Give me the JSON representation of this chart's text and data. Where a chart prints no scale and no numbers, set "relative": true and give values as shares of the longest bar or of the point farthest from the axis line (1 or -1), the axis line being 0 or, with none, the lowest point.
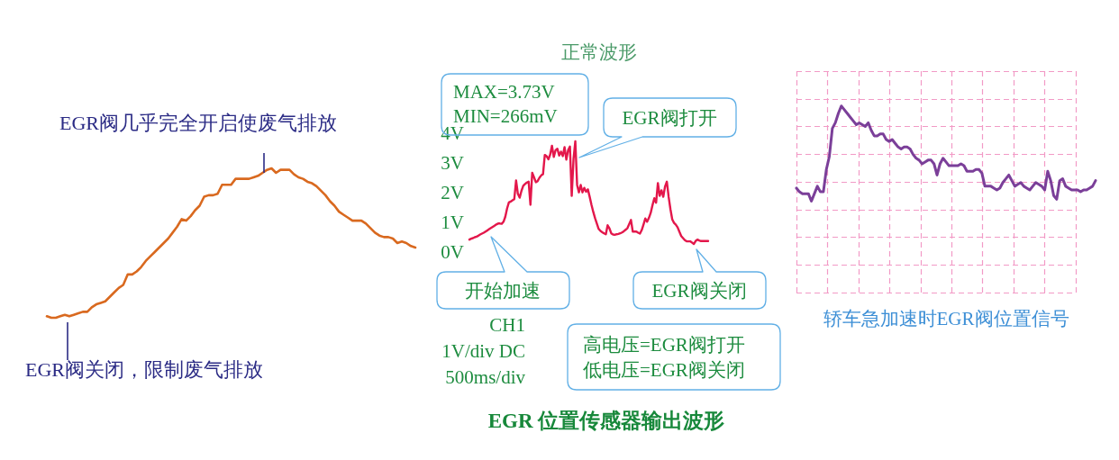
{
  "chart_data": [
    {
      "type": "line",
      "relative": true,
      "categories": [
        null,
        null,
        null,
        null,
        null,
        null,
        null,
        null,
        null,
        null,
        null,
        null,
        null,
        null,
        null,
        null,
        null,
        null,
        null,
        null,
        null,
        null,
        null,
        null,
        null,
        null,
        null,
        null,
        null,
        null,
        null,
        null,
        null,
        null,
        null,
        null,
        null,
        null,
        null,
        null,
        null,
        null,
        null,
        null,
        null,
        null,
        null,
        null,
        null,
        null,
        null,
        null,
        null,
        null,
        null,
        null,
        null,
        null,
        null,
        null,
        null,
        null,
        null,
        null,
        null,
        null,
        null,
        null,
        null,
        null,
        null,
        null,
        null,
        null,
        null,
        null,
        null,
        null,
        null,
        null,
        null,
        null,
        null
      ],
      "series": [
        {
          "color": "#d9691f",
          "values": [
            0.01,
            0,
            0,
            0.01,
            0.02,
            0.01,
            0.02,
            0.03,
            0.04,
            0.04,
            0.07,
            0.09,
            0.1,
            0.11,
            0.14,
            0.17,
            0.2,
            0.22,
            0.29,
            0.29,
            0.31,
            0.34,
            0.38,
            0.41,
            0.44,
            0.47,
            0.5,
            0.53,
            0.57,
            0.61,
            0.66,
            0.65,
            0.68,
            0.72,
            0.75,
            0.81,
            0.82,
            0.82,
            0.83,
            0.89,
            0.89,
            0.89,
            0.93,
            0.93,
            0.93,
            0.93,
            0.94,
            0.95,
            0.97,
            0.99,
            1.0,
            0.97,
            0.99,
            0.99,
            0.99,
            0.96,
            0.94,
            0.93,
            0.91,
            0.9,
            0.88,
            0.85,
            0.82,
            0.78,
            0.75,
            0.71,
            0.69,
            0.67,
            0.65,
            0.65,
            0.65,
            0.63,
            0.6,
            0.57,
            0.55,
            0.54,
            0.54,
            0.53,
            0.5,
            0.51,
            0.5,
            0.48,
            0.47
          ]
        }
      ],
      "annotations": [
        "EGR阀几乎完全开启使废气排放",
        "EGR阀关闭，限制废气排放"
      ]
    },
    {
      "type": "line",
      "title": "正常波形",
      "categories": [
        null,
        null,
        null,
        null,
        null,
        null,
        null,
        null,
        null,
        null,
        null,
        null,
        null,
        null,
        null,
        null,
        null,
        null,
        null,
        null,
        null,
        null,
        null,
        null,
        null,
        null,
        null,
        null,
        null,
        null,
        null,
        null,
        null,
        null,
        null,
        null,
        null,
        null,
        null,
        null,
        null,
        null,
        null,
        null,
        null,
        null,
        null,
        null,
        null,
        null,
        null,
        null,
        null,
        null,
        null,
        null,
        null,
        null,
        null,
        null,
        null,
        null,
        null,
        null,
        null,
        null,
        null,
        null,
        null,
        null,
        null,
        null,
        null,
        null,
        null,
        null,
        null,
        null,
        null,
        null,
        null,
        null,
        null,
        null,
        null,
        null,
        null,
        null,
        null,
        null,
        null,
        null,
        null,
        null,
        null,
        null,
        null,
        null,
        null,
        null,
        null,
        null,
        null,
        null,
        null,
        null,
        null,
        null,
        null,
        null,
        null,
        null,
        null,
        null,
        null,
        null,
        null,
        null,
        null,
        null,
        null,
        null,
        null,
        null,
        null,
        null,
        null,
        null,
        null,
        null,
        null,
        null,
        null,
        null
      ],
      "series": [
        {
          "color": "#e3174b",
          "values": [
            0.42,
            0.45,
            0.47,
            0.5,
            0.52,
            0.55,
            0.59,
            0.62,
            0.65,
            0.69,
            0.73,
            0.77,
            0.81,
            0.85,
            0.89,
            0.93,
            0.96,
            0.96,
            0.95,
            1.02,
            1.19,
            1.47,
            1.67,
            1.7,
            1.74,
            1.78,
            2.41,
            1.96,
            1.83,
            2.06,
            2.23,
            2.29,
            2.34,
            2.37,
            1.59,
            2.67,
            2.52,
            2.35,
            2.39,
            2.5,
            2.58,
            2.62,
            3.27,
            3.23,
            3.12,
            3.28,
            3.58,
            3.2,
            3.43,
            3.48,
            3.25,
            3.38,
            3.23,
            3.53,
            3.11,
            3.43,
            3.55,
            1.89,
            3.13,
            3.73,
            2.26,
            2.01,
            2.26,
            2.01,
            2.16,
            2.03,
            2.11,
            1.86,
            1.59,
            1.35,
            1.14,
            0.96,
            0.78,
            0.71,
            0.67,
            0.63,
            0.6,
            0.9,
            0.8,
            0.63,
            0.59,
            0.58,
            0.6,
            0.61,
            0.63,
            0.66,
            0.7,
            0.75,
            0.8,
            0.94,
            1.08,
            0.69,
            0.69,
            0.69,
            0.65,
            0.62,
            0.74,
            0.93,
            1.13,
            1.02,
            1.15,
            1.32,
            1.58,
            1.81,
            1.66,
            2.32,
            1.89,
            2.08,
            1.86,
            2.21,
            2.37,
            1.85,
            1.44,
            1.1,
            0.98,
            0.92,
            0.83,
            0.68,
            0.54,
            0.47,
            0.4,
            0.36,
            0.36,
            0.36,
            0.32,
            0.27,
            0.37,
            0.42,
            0.39,
            0.37,
            0.37,
            0.37,
            0.37,
            0.37
          ]
        }
      ],
      "ylim": [
        0,
        4
      ],
      "yticks": [
        {
          "value": 0,
          "label": "0V"
        },
        {
          "value": 1,
          "label": "1V"
        },
        {
          "value": 2,
          "label": "2V"
        },
        {
          "value": 3,
          "label": "3V"
        },
        {
          "value": 4,
          "label": "4V"
        }
      ],
      "tick_labels": "y",
      "annotations": [
        "MAX=3.73V\nMIN=266mV",
        "EGR阀打开",
        "开始加速",
        "EGR阀关闭",
        "CH1\n1V/div DC\n500ms/div",
        "高电压=EGR阀打开",
        "低电压=EGR阀关闭",
        "EGR 位置传感器输出波形"
      ]
    },
    {
      "type": "line",
      "relative": true,
      "title": "轿车急加速时EGR阀位置信号",
      "grid": true,
      "categories": [
        null,
        null,
        null,
        null,
        null,
        null,
        null,
        null,
        null,
        null,
        null,
        null,
        null,
        null,
        null,
        null,
        null,
        null,
        null,
        null,
        null,
        null,
        null,
        null,
        null,
        null,
        null,
        null,
        null,
        null,
        null,
        null,
        null,
        null,
        null,
        null,
        null,
        null,
        null,
        null,
        null,
        null,
        null,
        null,
        null,
        null,
        null,
        null,
        null,
        null,
        null,
        null,
        null,
        null,
        null,
        null,
        null,
        null,
        null,
        null,
        null,
        null,
        null,
        null,
        null,
        null,
        null,
        null,
        null,
        null,
        null,
        null,
        null,
        null,
        null,
        null,
        null,
        null,
        null,
        null,
        null,
        null,
        null,
        null,
        null,
        null,
        null,
        null,
        null,
        null,
        null,
        null,
        null,
        null,
        null,
        null,
        null,
        null,
        null,
        null,
        null
      ],
      "series": [
        {
          "color": "#7b3f99",
          "values": [
            0.56,
            0.54,
            0.53,
            0.53,
            0.53,
            0.49,
            0.53,
            0.57,
            0.54,
            0.54,
            0.66,
            0.73,
            0.88,
            0.91,
            0.96,
            1.0,
            0.98,
            0.96,
            0.94,
            0.92,
            0.9,
            0.91,
            0.9,
            0.89,
            0.91,
            0.87,
            0.84,
            0.84,
            0.85,
            0.85,
            0.82,
            0.81,
            0.82,
            0.8,
            0.78,
            0.77,
            0.78,
            0.78,
            0.77,
            0.74,
            0.72,
            0.71,
            0.69,
            0.7,
            0.71,
            0.71,
            0.69,
            0.63,
            0.69,
            0.72,
            0.7,
            0.68,
            0.68,
            0.68,
            0.68,
            0.69,
            0.68,
            0.65,
            0.65,
            0.65,
            0.66,
            0.66,
            0.64,
            0.57,
            0.57,
            0.57,
            0.56,
            0.55,
            0.56,
            0.59,
            0.61,
            0.63,
            0.6,
            0.57,
            0.58,
            0.59,
            0.57,
            0.56,
            0.55,
            0.57,
            0.59,
            0.58,
            0.57,
            0.55,
            0.65,
            0.6,
            0.52,
            0.5,
            0.6,
            0.61,
            0.57,
            0.56,
            0.55,
            0.55,
            0.55,
            0.54,
            0.55,
            0.55,
            0.56,
            0.57,
            0.6
          ]
        }
      ]
    }
  ]
}
